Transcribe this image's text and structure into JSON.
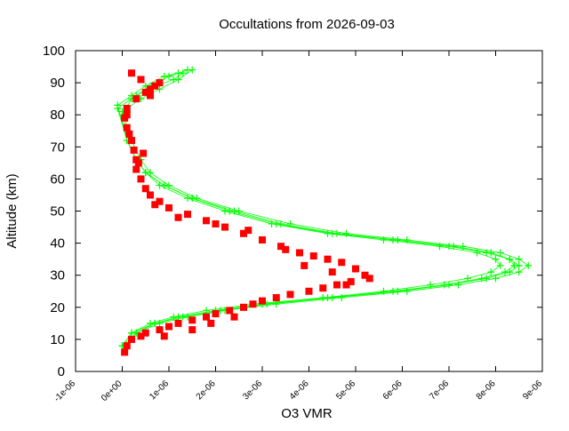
{
  "chart_data": {
    "type": "scatter",
    "title": "Occultations from 2026-09-03",
    "xlabel": "O3 VMR",
    "ylabel": "Altitude (km)",
    "xlim": [
      -1e-06,
      9e-06
    ],
    "ylim": [
      0,
      100
    ],
    "x_ticks": [
      -1e-06,
      0,
      1e-06,
      2e-06,
      3e-06,
      4e-06,
      5e-06,
      6e-06,
      7e-06,
      8e-06,
      9e-06
    ],
    "x_tick_labels": [
      "-1e-06",
      "0e+00",
      "1e-06",
      "2e-06",
      "3e-06",
      "4e-06",
      "5e-06",
      "6e-06",
      "7e-06",
      "8e-06",
      "9e-06"
    ],
    "y_ticks": [
      0,
      10,
      20,
      30,
      40,
      50,
      60,
      70,
      80,
      90,
      100
    ],
    "y_tick_labels": [
      "0",
      "10",
      "20",
      "30",
      "40",
      "50",
      "60",
      "70",
      "80",
      "90",
      "100"
    ],
    "grid": false,
    "legend": "none",
    "series": [
      {
        "color": "#00ff00",
        "marker": "plus",
        "connected": true,
        "profiles": [
          {
            "x": [
              0.0,
              2e-07,
              6e-07,
              1.1e-06,
              1.8e-06,
              2.8e-06,
              4.3e-06,
              5.6e-06,
              6.6e-06,
              7.4e-06,
              7.9e-06,
              8.1e-06,
              8e-06,
              7.6e-06,
              6.8e-06,
              5.6e-06,
              4.4e-06,
              3.2e-06,
              2.2e-06,
              1.4e-06,
              8e-07,
              5e-07,
              3e-07,
              1e-07,
              0.0,
              2e-07,
              6e-07,
              1e-06,
              1.4e-06
            ],
            "y": [
              8,
              12,
              15,
              17,
              19,
              21,
              23,
              25,
              27,
              29,
              31,
              33,
              35,
              37,
              39,
              41,
              43,
              46,
              50,
              54,
              58,
              62,
              66,
              72,
              80,
              85,
              89,
              92,
              94
            ]
          },
          {
            "x": [
              0.0,
              3e-07,
              7e-07,
              1.2e-06,
              2e-06,
              3e-06,
              4.4e-06,
              5.8e-06,
              6.9e-06,
              7.7e-06,
              8.2e-06,
              8.4e-06,
              8.3e-06,
              7.9e-06,
              7.1e-06,
              5.9e-06,
              4.6e-06,
              3.4e-06,
              2.4e-06,
              1.5e-06,
              9e-07,
              5e-07,
              3e-07,
              1e-07,
              -1e-07,
              3e-07,
              7e-07,
              1.1e-06,
              1.3e-06
            ],
            "y": [
              8,
              12,
              15,
              17,
              19,
              21,
              23,
              25,
              27,
              29,
              31,
              33,
              35,
              37,
              39,
              41,
              43,
              46,
              50,
              54,
              58,
              62,
              66,
              72,
              82,
              86,
              89,
              91,
              93
            ]
          },
          {
            "x": [
              1e-07,
              3e-07,
              8e-07,
              1.4e-06,
              2.2e-06,
              3.3e-06,
              4.7e-06,
              6.1e-06,
              7.2e-06,
              8e-06,
              8.5e-06,
              8.7e-06,
              8.5e-06,
              8.1e-06,
              7.3e-06,
              6.1e-06,
              4.8e-06,
              3.6e-06,
              2.5e-06,
              1.6e-06,
              1e-06,
              6e-07,
              4e-07,
              2e-07,
              0.0,
              4e-07,
              8e-07,
              1.2e-06,
              1.5e-06
            ],
            "y": [
              8,
              12,
              15,
              17,
              19,
              21,
              23,
              25,
              27,
              29,
              31,
              33,
              35,
              37,
              39,
              41,
              43,
              46,
              50,
              54,
              58,
              62,
              66,
              72,
              81,
              85,
              88,
              91,
              94
            ]
          },
          {
            "x": [
              0.0,
              2e-07,
              7e-07,
              1.3e-06,
              2.1e-06,
              3.1e-06,
              4.5e-06,
              5.9e-06,
              7e-06,
              7.8e-06,
              8.3e-06,
              8.5e-06,
              8.3e-06,
              7.8e-06,
              7e-06,
              5.8e-06,
              4.5e-06,
              3.3e-06,
              2.3e-06,
              1.5e-06,
              9e-07,
              5e-07,
              3e-07,
              1e-07,
              -1e-07,
              2e-07,
              5e-07,
              9e-07,
              1.2e-06
            ],
            "y": [
              8,
              12,
              15,
              17,
              19,
              21,
              23,
              25,
              27,
              29,
              31,
              33,
              35,
              37,
              39,
              41,
              43,
              46,
              50,
              54,
              58,
              62,
              66,
              72,
              83,
              86,
              89,
              92,
              93
            ]
          }
        ]
      },
      {
        "color": "#ff0000",
        "marker": "square",
        "connected": false,
        "points": {
          "x": [
            5e-08,
            1e-07,
            2e-07,
            4e-07,
            5e-07,
            8e-07,
            1e-06,
            1.2e-06,
            1.5e-06,
            1.8e-06,
            2e-06,
            2.3e-06,
            2.6e-06,
            2.8e-06,
            3e-06,
            3.3e-06,
            3.6e-06,
            4e-06,
            4.3e-06,
            4.6e-06,
            4.9e-06,
            5.2e-06,
            5e-06,
            4.7e-06,
            4.4e-06,
            4.1e-06,
            3.8e-06,
            3.4e-06,
            3e-06,
            2.6e-06,
            2.2e-06,
            1.8e-06,
            1.4e-06,
            1e-06,
            8e-07,
            6e-07,
            5e-07,
            4e-07,
            3e-07,
            3e-07,
            2.5e-07,
            2e-07,
            1e-07,
            5e-08,
            1e-07,
            3e-07,
            5e-07,
            7e-07,
            4e-07,
            2e-07,
            8e-07,
            6e-07,
            1e-07,
            1.5e-06,
            2.4e-06,
            9e-07,
            1.9e-06,
            4.8e-06,
            5.3e-06,
            4.5e-06,
            3.9e-06,
            3.5e-06,
            2.7e-06,
            2e-06,
            1.2e-06,
            7e-07,
            3.5e-07,
            4.5e-07,
            1.5e-07,
            6e-07
          ],
          "y": [
            6,
            8,
            10,
            11,
            12,
            13,
            14,
            15,
            16,
            17,
            18,
            19,
            20,
            21,
            22,
            23,
            24,
            25,
            26,
            27,
            28,
            30,
            32,
            34,
            35,
            36,
            37,
            39,
            41,
            43,
            45,
            47,
            49,
            51,
            53,
            55,
            57,
            60,
            63,
            66,
            69,
            72,
            76,
            79,
            82,
            85,
            87,
            89,
            91,
            93,
            90,
            88,
            80,
            13,
            17,
            11,
            15,
            27,
            29,
            31,
            33,
            38,
            44,
            46,
            48,
            52,
            65,
            68,
            74,
            86
          ]
        }
      }
    ]
  }
}
